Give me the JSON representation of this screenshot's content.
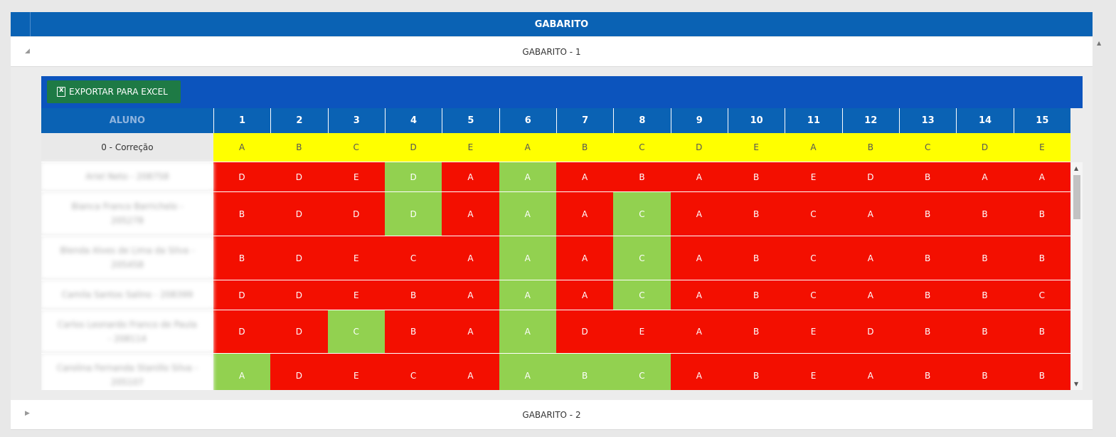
{
  "header": {
    "title": "GABARITO"
  },
  "groups": [
    {
      "label": "GABARITO - 1",
      "expanded": true
    },
    {
      "label": "GABARITO - 2",
      "expanded": false
    }
  ],
  "toolbar": {
    "export_label": "EXPORTAR PARA EXCEL",
    "export_icon": "excel-icon"
  },
  "table": {
    "student_header": "ALUNO",
    "question_headers": [
      "1",
      "2",
      "3",
      "4",
      "5",
      "6",
      "7",
      "8",
      "9",
      "10",
      "11",
      "12",
      "13",
      "14",
      "15"
    ],
    "answer_key": {
      "label": "0 - Correção",
      "answers": [
        "A",
        "B",
        "C",
        "D",
        "E",
        "A",
        "B",
        "C",
        "D",
        "E",
        "A",
        "B",
        "C",
        "D",
        "E"
      ]
    },
    "students": [
      {
        "name": "Ariel Neto - 208758",
        "answers": [
          "D",
          "D",
          "E",
          "D",
          "A",
          "A",
          "A",
          "B",
          "A",
          "B",
          "E",
          "D",
          "B",
          "A",
          "A"
        ]
      },
      {
        "name": "Bianca Franco Barrichelo - 205278",
        "answers": [
          "B",
          "D",
          "D",
          "D",
          "A",
          "A",
          "A",
          "C",
          "A",
          "B",
          "C",
          "A",
          "B",
          "B",
          "B"
        ]
      },
      {
        "name": "Blenda Alves de Lima da Silva - 205458",
        "answers": [
          "B",
          "D",
          "E",
          "C",
          "A",
          "A",
          "A",
          "C",
          "A",
          "B",
          "C",
          "A",
          "B",
          "B",
          "B"
        ]
      },
      {
        "name": "Camila Santos Salino - 208399",
        "answers": [
          "D",
          "D",
          "E",
          "B",
          "A",
          "A",
          "A",
          "C",
          "A",
          "B",
          "C",
          "A",
          "B",
          "B",
          "C"
        ]
      },
      {
        "name": "Carlos Leonardo Franco de Paula - 208114",
        "answers": [
          "D",
          "D",
          "C",
          "B",
          "A",
          "A",
          "D",
          "E",
          "A",
          "B",
          "E",
          "D",
          "B",
          "B",
          "B"
        ]
      },
      {
        "name": "Carolina Fernanda Stanillo Silva - 205107",
        "answers": [
          "A",
          "D",
          "E",
          "C",
          "A",
          "A",
          "B",
          "C",
          "A",
          "B",
          "E",
          "A",
          "B",
          "B",
          "B"
        ]
      }
    ]
  },
  "colors": {
    "header_blue": "#0a62b4",
    "toolbar_blue": "#0c54bd",
    "excel_green": "#1e7a45",
    "key_yellow": "#ffff00",
    "wrong_red": "#f30f00",
    "right_green": "#92d150"
  }
}
